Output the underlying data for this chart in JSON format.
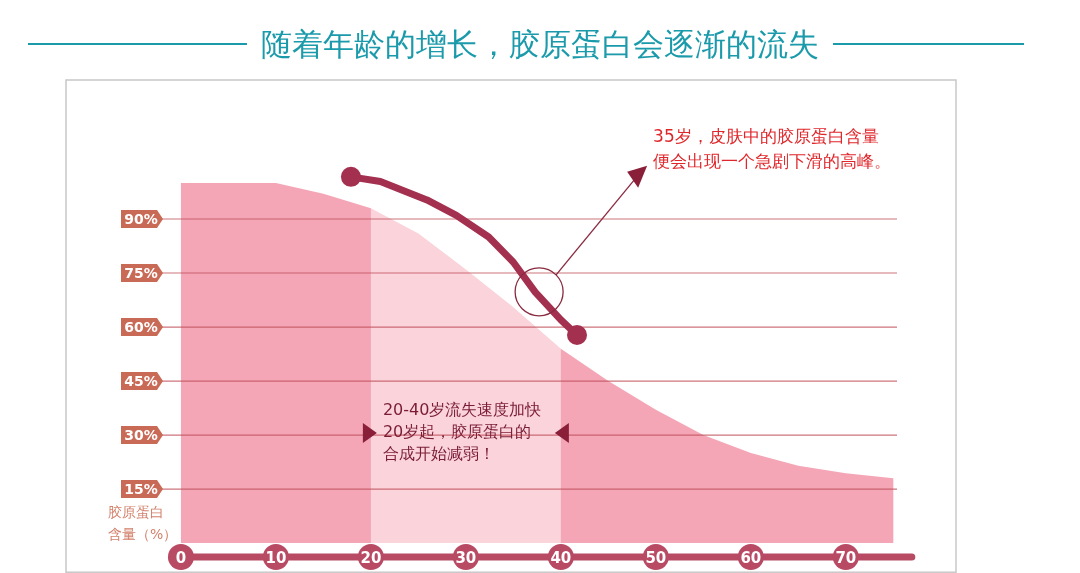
{
  "chart_data": {
    "type": "area",
    "title": "随着年龄的增长，胶原蛋白会逐渐的流失",
    "ylabel": "胶原蛋白含量（%）",
    "xlim": [
      -12.1,
      81.6
    ],
    "ylim": [
      -8.3,
      128.6
    ],
    "xticks": [
      0,
      10,
      20,
      30,
      40,
      50,
      60,
      70
    ],
    "yticks": [
      {
        "value": 15,
        "label": "15%"
      },
      {
        "value": 30,
        "label": "30%"
      },
      {
        "value": 45,
        "label": "45%"
      },
      {
        "value": 60,
        "label": "60%"
      },
      {
        "value": 75,
        "label": "75%"
      },
      {
        "value": 90,
        "label": "90%"
      }
    ],
    "grid": "y",
    "series": [
      {
        "color": "#f4a6b7",
        "x": [
          0,
          5,
          10,
          15,
          20,
          25,
          30,
          35,
          40,
          45,
          50,
          55,
          60,
          65,
          70,
          75
        ],
        "values": [
          100,
          100,
          100,
          97,
          93,
          86,
          76,
          65.5,
          54,
          45,
          37,
          30,
          25,
          21.5,
          19.4,
          18
        ]
      },
      {
        "type": "line",
        "color": "#a3304f",
        "x": [
          17.9,
          21,
          25.9,
          29,
          32.4,
          35,
          37.3,
          40,
          41.7
        ],
        "values": [
          101.7,
          100.4,
          95.3,
          91,
          85,
          78,
          69.7,
          62,
          57.8
        ]
      },
      {
        "type": "scatter",
        "color": "#a3304f",
        "marker": "circle",
        "x": [
          17.9,
          41.7
        ],
        "values": [
          101.7,
          57.8
        ]
      }
    ],
    "bands": [
      {
        "axis": "x",
        "from": 20,
        "to": 40,
        "color": "#ffffff",
        "label": "20-40岁流失速度加快20岁起，胶原蛋白的合成开始减弱！"
      }
    ],
    "annotations": [
      {
        "text": "35岁，皮肤中的胶原蛋白含量便会出现一个急剧下滑的高峰。",
        "x": 39.5,
        "y": 74.5
      }
    ]
  }
}
